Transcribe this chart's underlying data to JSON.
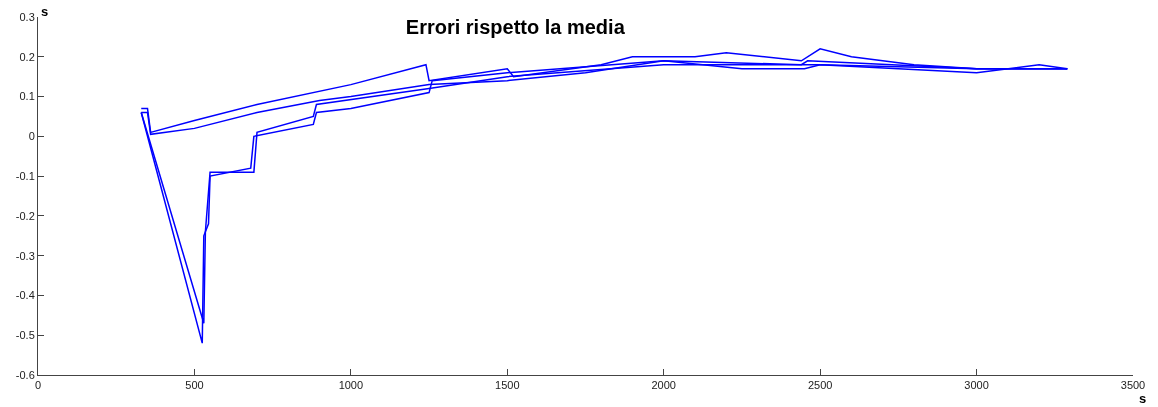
{
  "chart_data": {
    "type": "line",
    "title": "Errori rispetto la media",
    "xlabel": "s",
    "ylabel": "s",
    "xlim": [
      0,
      3500
    ],
    "ylim": [
      -0.6,
      0.3
    ],
    "xticks": [
      0,
      500,
      1000,
      1500,
      2000,
      2500,
      3000,
      3500
    ],
    "yticks": [
      -0.6,
      -0.5,
      -0.4,
      -0.3,
      -0.2,
      -0.1,
      0,
      0.1,
      0.2,
      0.3
    ],
    "grid": false,
    "marker": "none",
    "line_style": "solid",
    "series": [
      {
        "color": "#0000ff",
        "x": [
          330,
          350,
          360,
          500,
          700,
          900,
          1000,
          1250,
          1500,
          1750,
          2000,
          2250,
          2450,
          2500,
          2750,
          3000,
          3200,
          3290
        ],
        "values": [
          0.06,
          0.06,
          0.005,
          0.02,
          0.06,
          0.09,
          0.1,
          0.13,
          0.14,
          0.16,
          0.19,
          0.17,
          0.17,
          0.18,
          0.17,
          0.16,
          0.18,
          0.17
        ]
      },
      {
        "color": "#0000ff",
        "x": [
          330,
          350,
          360,
          500,
          700,
          1000,
          1240,
          1250,
          1500,
          1520,
          1800,
          1900,
          2100,
          2200,
          2440,
          2500,
          2600,
          2800,
          3000,
          3290
        ],
        "values": [
          0.07,
          0.07,
          0.01,
          0.04,
          0.08,
          0.13,
          0.18,
          0.14,
          0.17,
          0.15,
          0.18,
          0.2,
          0.2,
          0.21,
          0.19,
          0.22,
          0.2,
          0.18,
          0.17,
          0.17
        ]
      },
      {
        "color": "#0000ff",
        "x": [
          330,
          525,
          530,
          545,
          550,
          680,
          690,
          880,
          890,
          1000,
          1250,
          1260,
          1500,
          2000,
          2440,
          2460,
          3000,
          3290
        ],
        "values": [
          0.06,
          -0.52,
          -0.25,
          -0.22,
          -0.1,
          -0.08,
          0,
          0.03,
          0.06,
          0.07,
          0.11,
          0.14,
          0.16,
          0.19,
          0.18,
          0.19,
          0.17,
          0.17
        ]
      },
      {
        "color": "#0000ff",
        "x": [
          330,
          530,
          535,
          550,
          690,
          700,
          880,
          890,
          1250,
          1500,
          2000,
          2500,
          3000,
          3290
        ],
        "values": [
          0.06,
          -0.47,
          -0.24,
          -0.09,
          -0.09,
          0.01,
          0.05,
          0.08,
          0.12,
          0.15,
          0.18,
          0.18,
          0.17,
          0.17
        ]
      }
    ]
  }
}
